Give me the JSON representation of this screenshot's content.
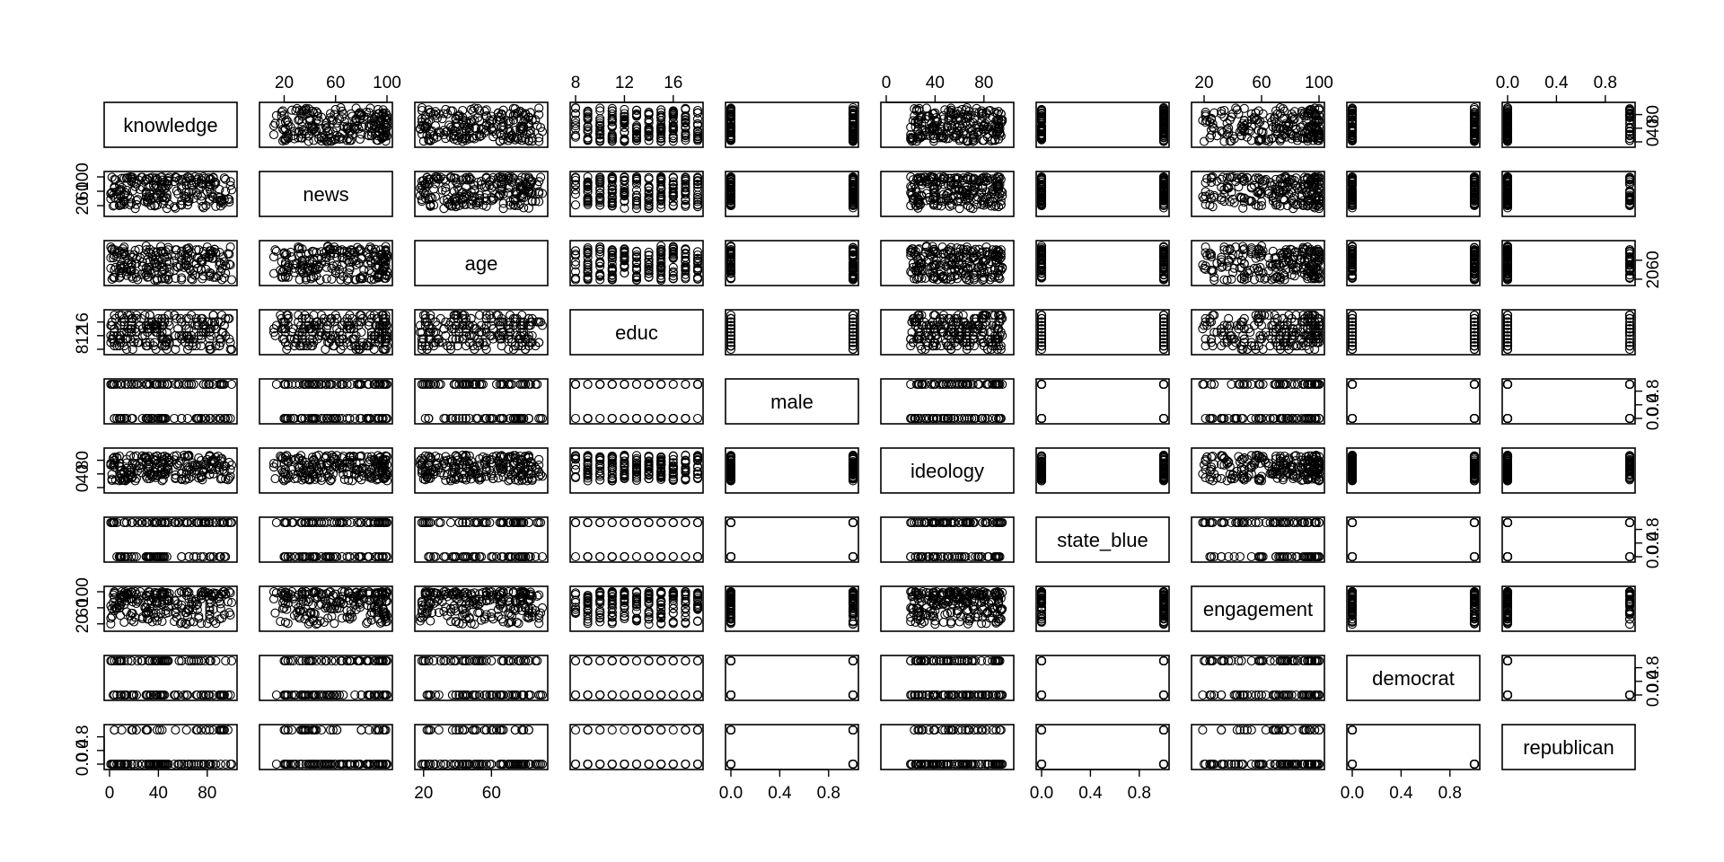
{
  "chart_data": {
    "type": "scatter",
    "variables": [
      {
        "name": "knowledge",
        "kind": "continuous",
        "range": [
          0,
          100
        ],
        "ticks": [
          0,
          40,
          80
        ]
      },
      {
        "name": "news",
        "kind": "continuous",
        "range": [
          5,
          100
        ],
        "ticks": [
          20,
          60,
          100
        ]
      },
      {
        "name": "age",
        "kind": "continuous",
        "range": [
          18,
          90
        ],
        "ticks": [
          20,
          60
        ]
      },
      {
        "name": "educ",
        "kind": "discrete",
        "range": [
          8,
          18
        ],
        "ticks": [
          8,
          12,
          16
        ],
        "levels": [
          8,
          9,
          10,
          11,
          12,
          13,
          14,
          15,
          16,
          17,
          18
        ]
      },
      {
        "name": "male",
        "kind": "binary",
        "range": [
          0,
          1
        ],
        "ticks": [
          0.0,
          0.4,
          0.8
        ],
        "levels": [
          0,
          1
        ]
      },
      {
        "name": "ideology",
        "kind": "continuous",
        "range": [
          0,
          100
        ],
        "ticks": [
          0,
          40,
          80
        ]
      },
      {
        "name": "state_blue",
        "kind": "binary",
        "range": [
          0,
          1
        ],
        "ticks": [
          0.0,
          0.4,
          0.8
        ],
        "levels": [
          0,
          1
        ]
      },
      {
        "name": "engagement",
        "kind": "continuous",
        "range": [
          15,
          100
        ],
        "ticks": [
          20,
          60,
          100
        ]
      },
      {
        "name": "democrat",
        "kind": "binary",
        "range": [
          0,
          1
        ],
        "ticks": [
          0.0,
          0.4,
          0.8
        ],
        "levels": [
          0,
          1
        ]
      },
      {
        "name": "republican",
        "kind": "binary",
        "range": [
          0,
          1
        ],
        "ticks": [
          0.0,
          0.4,
          0.8
        ],
        "levels": [
          0,
          1
        ]
      }
    ],
    "tick_text": {
      "knowledge": [
        "0",
        "40",
        "80"
      ],
      "news": [
        "20",
        "60",
        "100"
      ],
      "age": [
        "20",
        "60"
      ],
      "educ": [
        "8",
        "12",
        "16"
      ],
      "male": [
        "0.0",
        "0.4",
        "0.8"
      ],
      "ideology": [
        "0",
        "40",
        "80"
      ],
      "state_blue": [
        "0.0",
        "0.4",
        "0.8"
      ],
      "engagement": [
        "20",
        "60",
        "100"
      ],
      "democrat": [
        "0.0",
        "0.4",
        "0.8"
      ],
      "republican": [
        "0.0",
        "0.4",
        "0.8"
      ]
    },
    "axes": {
      "bottom": [
        "knowledge",
        "age",
        "male",
        "state_blue",
        "democrat"
      ],
      "top": [
        "news",
        "educ",
        "ideology",
        "engagement",
        "republican"
      ],
      "left": [
        "news",
        "educ",
        "ideology",
        "engagement",
        "republican"
      ],
      "right": [
        "knowledge",
        "age",
        "male",
        "state_blue",
        "democrat"
      ]
    },
    "grid": false,
    "legend": "none",
    "title": "",
    "xlabel": "",
    "ylabel": ""
  }
}
